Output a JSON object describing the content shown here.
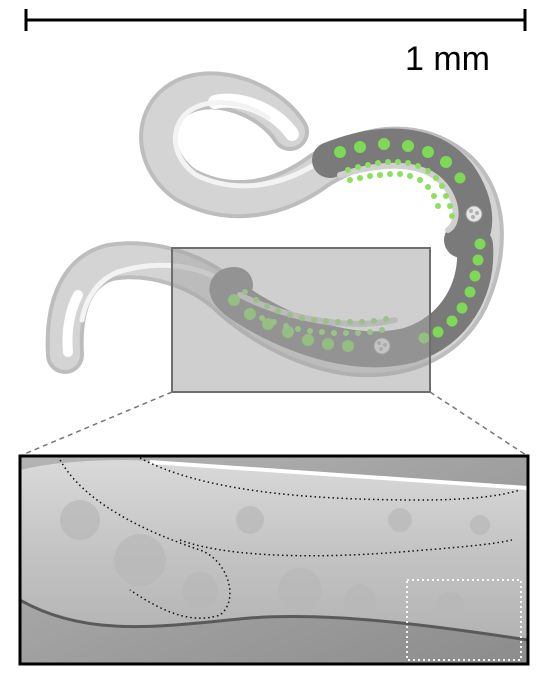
{
  "scale_bar": {
    "label": "1 mm"
  },
  "colors": {
    "worm_outer": "#c4c4c4",
    "worm_body": "#d6d6d6",
    "worm_highlight": "#f2f2f2",
    "gonad": "#7d7d7d",
    "oocyte": "#7ed957",
    "zoom_box_fill": "#a9a9a9",
    "zoom_box_stroke": "#6e6e6e",
    "micrograph_bg": "#9a9a9a",
    "micrograph_tissue": "#c9c9c9"
  },
  "icons": {
    "vulva": "vulva-icon",
    "spermatheca": "spermatheca-icon"
  }
}
